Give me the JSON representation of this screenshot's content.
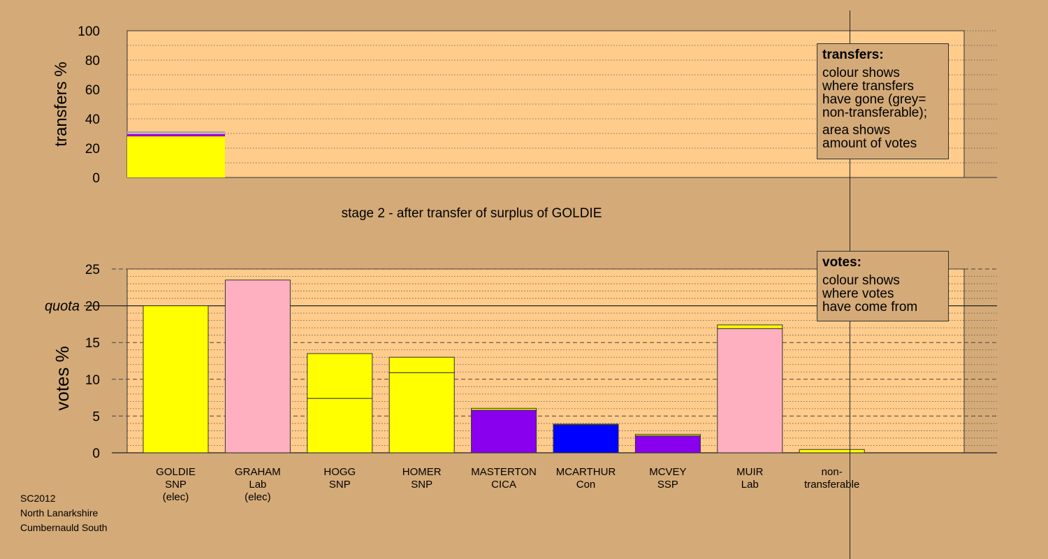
{
  "chart_data": [
    {
      "type": "bar",
      "title": "",
      "ylabel": "transfers %",
      "ylim": [
        0,
        100
      ],
      "yticks": [
        0,
        20,
        40,
        60,
        80,
        100
      ],
      "grid": "dotted",
      "stack": [
        {
          "candidate": "GOLDIE",
          "segments": [
            {
              "color": "#ffff00",
              "value": 28
            },
            {
              "color": "#ff0000",
              "value": 0.3
            },
            {
              "color": "#8800ee",
              "value": 1.3
            },
            {
              "color": "#ffb0c0",
              "value": 0.5
            },
            {
              "color": "#aaaaaa",
              "value": 1.4
            }
          ]
        }
      ]
    },
    {
      "type": "bar",
      "title": "stage 2 - after transfer of surplus of GOLDIE",
      "ylabel": "votes %",
      "ylim": [
        0,
        25
      ],
      "yticks": [
        0,
        5,
        10,
        15,
        20,
        25
      ],
      "quota_label": "quota",
      "quota": 20,
      "grid": "dotted",
      "categories": [
        {
          "name": "GOLDIE",
          "party": "SNP",
          "status": "(elec)"
        },
        {
          "name": "GRAHAM",
          "party": "Lab",
          "status": "(elec)"
        },
        {
          "name": "HOGG",
          "party": "SNP",
          "status": ""
        },
        {
          "name": "HOMER",
          "party": "SNP",
          "status": ""
        },
        {
          "name": "MASTERTON",
          "party": "CICA",
          "status": ""
        },
        {
          "name": "MCARTHUR",
          "party": "Con",
          "status": ""
        },
        {
          "name": "MCVEY",
          "party": "SSP",
          "status": ""
        },
        {
          "name": "MUIR",
          "party": "Lab",
          "status": ""
        },
        {
          "name": "non-",
          "party": "transferable",
          "status": ""
        }
      ],
      "bars": [
        {
          "segments": [
            {
              "color": "#ffff00",
              "value": 20.0
            }
          ]
        },
        {
          "segments": [
            {
              "color": "#ffb0c0",
              "value": 23.5
            }
          ]
        },
        {
          "segments": [
            {
              "color": "#ffff00",
              "value": 7.4
            },
            {
              "color": "#ffff00",
              "value": 6.1
            }
          ]
        },
        {
          "segments": [
            {
              "color": "#ffff00",
              "value": 10.9
            },
            {
              "color": "#ffff00",
              "value": 2.1
            }
          ]
        },
        {
          "segments": [
            {
              "color": "#8800ee",
              "value": 5.8
            },
            {
              "color": "#ffff00",
              "value": 0.25
            }
          ]
        },
        {
          "segments": [
            {
              "color": "#0000ff",
              "value": 3.8
            },
            {
              "color": "#ffff00",
              "value": 0.1
            }
          ]
        },
        {
          "segments": [
            {
              "color": "#8800ee",
              "value": 2.3
            },
            {
              "color": "#ffff00",
              "value": 0.2
            }
          ]
        },
        {
          "segments": [
            {
              "color": "#ffb0c0",
              "value": 16.9
            },
            {
              "color": "#ffff00",
              "value": 0.5
            }
          ]
        },
        {
          "segments": [
            {
              "color": "#ffff00",
              "value": 0.45
            }
          ]
        }
      ]
    }
  ],
  "legends": {
    "transfers": {
      "title": "transfers:",
      "text1": "colour shows\nwhere transfers\nhave gone (grey=\nnon-transferable);",
      "text2": "area shows\namount of votes"
    },
    "votes": {
      "title": "votes:",
      "text1": "colour shows\nwhere votes\nhave come from"
    }
  },
  "footer": {
    "line1": "SC2012",
    "line2": "North Lanarkshire",
    "line3": "Cumbernauld South"
  },
  "colors": {
    "background": "#d4aa78",
    "plot_bg": "#ffcc8c",
    "grey": "#aaaaaa"
  }
}
